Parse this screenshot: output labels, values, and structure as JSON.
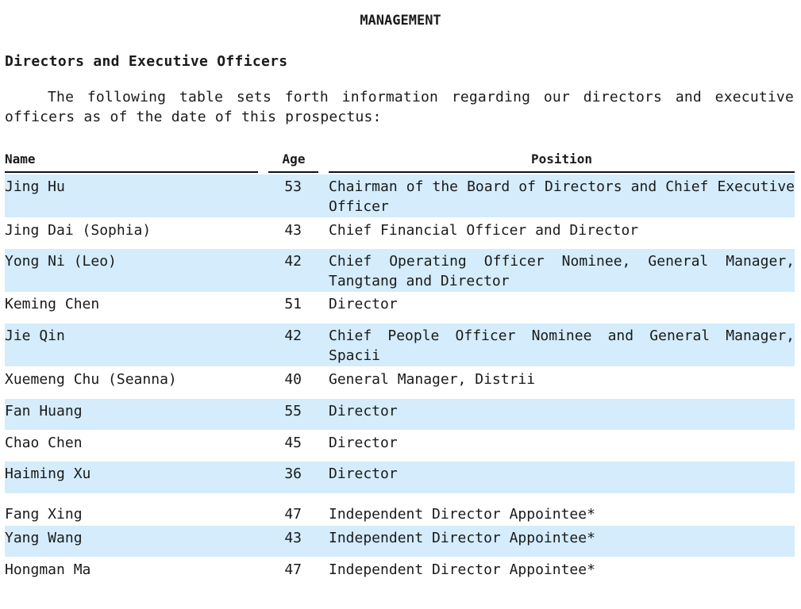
{
  "document": {
    "title": "MANAGEMENT",
    "subheading": "Directors and Executive Officers",
    "intro": "The following table sets forth information regarding our directors and executive officers as of the date of this prospectus:"
  },
  "table": {
    "headers": {
      "name": "Name",
      "age": "Age",
      "position": "Position"
    },
    "rows": [
      {
        "name": "Jing Hu",
        "age": "53",
        "position": "Chairman of the Board of Directors and Chief Executive Officer"
      },
      {
        "name": "Jing Dai (Sophia)",
        "age": "43",
        "position": "Chief Financial Officer and Director"
      },
      {
        "name": "Yong Ni (Leo)",
        "age": "42",
        "position": "Chief Operating Officer Nominee, General Manager, Tangtang and Director"
      },
      {
        "name": "Keming Chen",
        "age": "51",
        "position": "Director"
      },
      {
        "name": "Jie Qin",
        "age": "42",
        "position": "Chief People Officer Nominee and General Manager, Spacii"
      },
      {
        "name": "Xuemeng Chu (Seanna)",
        "age": "40",
        "position": "General Manager, Distrii"
      },
      {
        "name": "Fan Huang",
        "age": "55",
        "position": "Director"
      },
      {
        "name": "Chao Chen",
        "age": "45",
        "position": "Director"
      },
      {
        "name": "Haiming Xu",
        "age": "36",
        "position": "Director"
      },
      {
        "name": "Fang Xing",
        "age": "47",
        "position": "Independent Director Appointee*"
      },
      {
        "name": "Yang Wang",
        "age": "43",
        "position": "Independent Director Appointee*"
      },
      {
        "name": "Hongman Ma",
        "age": "47",
        "position": "Independent Director Appointee*"
      }
    ]
  }
}
